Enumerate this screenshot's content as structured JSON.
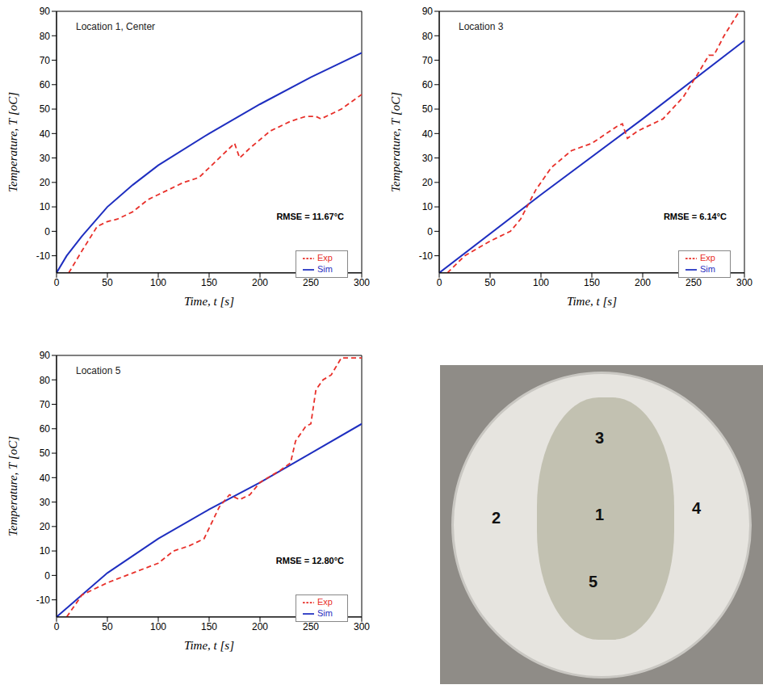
{
  "chart_data": [
    {
      "type": "line",
      "title": "Location 1, Center",
      "x_label": "Time, t [s]",
      "y_label": "Temperature, T [oC]",
      "xlim": [
        0,
        300
      ],
      "xticks": [
        0,
        50,
        100,
        150,
        200,
        250,
        300
      ],
      "ylim": [
        -17,
        90
      ],
      "yticks": [
        -10,
        0,
        10,
        20,
        30,
        40,
        50,
        60,
        70,
        80,
        90
      ],
      "legend": "lower right",
      "annotations": [
        "RMSE = 11.67°C"
      ],
      "series": [
        {
          "name": "Sim",
          "color": "#1f2fc0",
          "line_style": "solid",
          "x": [
            0,
            10,
            25,
            50,
            75,
            100,
            150,
            200,
            250,
            300
          ],
          "values": [
            -17,
            -10,
            -2,
            10,
            19,
            27,
            40,
            52,
            63,
            73
          ]
        },
        {
          "name": "Exp",
          "color": "#e8302a",
          "line_style": "dashed",
          "x": [
            12,
            25,
            40,
            50,
            60,
            75,
            90,
            100,
            125,
            140,
            160,
            175,
            180,
            190,
            210,
            230,
            245,
            255,
            260,
            280,
            300
          ],
          "values": [
            -17,
            -8,
            2,
            4,
            5,
            8,
            13,
            15,
            20,
            22,
            30,
            36,
            30,
            34,
            41,
            45,
            47,
            47,
            46,
            50,
            56
          ]
        }
      ]
    },
    {
      "type": "line",
      "title": "Location 3",
      "x_label": "Time, t [s]",
      "y_label": "Temperature, T [oC]",
      "xlim": [
        0,
        300
      ],
      "xticks": [
        0,
        50,
        100,
        150,
        200,
        250,
        300
      ],
      "ylim": [
        -17,
        90
      ],
      "yticks": [
        -10,
        0,
        10,
        20,
        30,
        40,
        50,
        60,
        70,
        80,
        90
      ],
      "legend": "lower right",
      "annotations": [
        "RMSE = 6.14°C"
      ],
      "series": [
        {
          "name": "Sim",
          "color": "#1f2fc0",
          "line_style": "solid",
          "x": [
            0,
            100,
            200,
            300
          ],
          "values": [
            -17,
            15,
            46,
            78
          ]
        },
        {
          "name": "Exp",
          "color": "#e8302a",
          "line_style": "dashed",
          "x": [
            8,
            25,
            50,
            70,
            80,
            95,
            110,
            130,
            150,
            175,
            180,
            185,
            195,
            220,
            240,
            255,
            265,
            270,
            280,
            295
          ],
          "values": [
            -17,
            -10,
            -4,
            0,
            5,
            17,
            26,
            33,
            36,
            43,
            44,
            38,
            41,
            46,
            55,
            65,
            72,
            72,
            80,
            90
          ]
        }
      ]
    },
    {
      "type": "line",
      "title": "Location 5",
      "x_label": "Time, t [s]",
      "y_label": "Temperature, T [oC]",
      "xlim": [
        0,
        300
      ],
      "xticks": [
        0,
        50,
        100,
        150,
        200,
        250,
        300
      ],
      "ylim": [
        -17,
        90
      ],
      "yticks": [
        -10,
        0,
        10,
        20,
        30,
        40,
        50,
        60,
        70,
        80,
        90
      ],
      "legend": "lower right",
      "annotations": [
        "RMSE = 12.80°C"
      ],
      "series": [
        {
          "name": "Sim",
          "color": "#1f2fc0",
          "line_style": "solid",
          "x": [
            0,
            50,
            100,
            150,
            200,
            250,
            300
          ],
          "values": [
            -17,
            1,
            15,
            27,
            38,
            50,
            62
          ]
        },
        {
          "name": "Exp",
          "color": "#e8302a",
          "line_style": "dashed",
          "x": [
            10,
            25,
            50,
            75,
            100,
            115,
            130,
            145,
            160,
            170,
            180,
            190,
            200,
            220,
            230,
            235,
            245,
            250,
            255,
            262,
            270,
            280,
            300
          ],
          "values": [
            -17,
            -8,
            -3,
            1,
            5,
            10,
            12,
            15,
            28,
            33,
            31,
            33,
            38,
            43,
            46,
            55,
            61,
            62,
            76,
            80,
            82,
            89,
            89
          ]
        }
      ]
    }
  ],
  "photo": {
    "labels": [
      "3",
      "2",
      "1",
      "4",
      "5"
    ]
  }
}
